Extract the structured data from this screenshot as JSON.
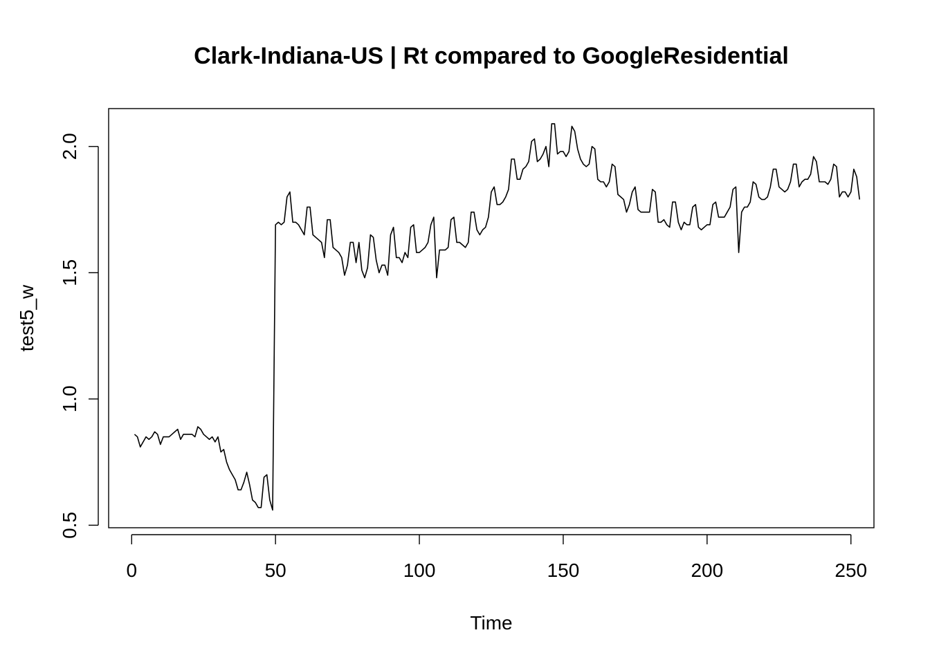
{
  "chart_data": {
    "type": "line",
    "title": "Clark-Indiana-US | Rt compared to GoogleResidential",
    "xlabel": "Time",
    "ylabel": "test5_w",
    "xlim": [
      -8,
      258
    ],
    "ylim": [
      0.49,
      2.15
    ],
    "x_ticks": [
      0,
      50,
      100,
      150,
      200,
      250
    ],
    "x_tick_labels": [
      "0",
      "50",
      "100",
      "150",
      "200",
      "250"
    ],
    "y_ticks": [
      0.5,
      1.0,
      1.5,
      2.0
    ],
    "y_tick_labels": [
      "0.5",
      "1.0",
      "1.5",
      "2.0"
    ],
    "grid": false,
    "legend": "none",
    "colors": {
      "line": "#000000",
      "background": "#ffffff"
    },
    "series": [
      {
        "x_start": 1,
        "x_step": 1,
        "values": [
          0.86,
          0.85,
          0.81,
          0.83,
          0.85,
          0.84,
          0.85,
          0.87,
          0.86,
          0.82,
          0.85,
          0.85,
          0.85,
          0.86,
          0.87,
          0.88,
          0.84,
          0.86,
          0.86,
          0.86,
          0.86,
          0.85,
          0.89,
          0.88,
          0.86,
          0.85,
          0.84,
          0.85,
          0.83,
          0.85,
          0.79,
          0.8,
          0.75,
          0.72,
          0.7,
          0.68,
          0.64,
          0.64,
          0.67,
          0.71,
          0.66,
          0.6,
          0.59,
          0.57,
          0.57,
          0.69,
          0.7,
          0.6,
          0.56,
          1.69,
          1.7,
          1.69,
          1.7,
          1.8,
          1.82,
          1.7,
          1.7,
          1.69,
          1.67,
          1.65,
          1.76,
          1.76,
          1.65,
          1.64,
          1.63,
          1.62,
          1.56,
          1.71,
          1.71,
          1.6,
          1.59,
          1.58,
          1.56,
          1.49,
          1.53,
          1.62,
          1.62,
          1.54,
          1.62,
          1.51,
          1.48,
          1.52,
          1.65,
          1.64,
          1.55,
          1.5,
          1.53,
          1.53,
          1.49,
          1.65,
          1.68,
          1.56,
          1.56,
          1.54,
          1.58,
          1.56,
          1.68,
          1.69,
          1.58,
          1.58,
          1.59,
          1.6,
          1.62,
          1.69,
          1.72,
          1.48,
          1.59,
          1.59,
          1.59,
          1.6,
          1.71,
          1.72,
          1.62,
          1.62,
          1.61,
          1.6,
          1.62,
          1.74,
          1.74,
          1.67,
          1.65,
          1.67,
          1.68,
          1.72,
          1.82,
          1.84,
          1.77,
          1.77,
          1.78,
          1.8,
          1.83,
          1.95,
          1.95,
          1.87,
          1.87,
          1.91,
          1.92,
          1.94,
          2.02,
          2.03,
          1.94,
          1.95,
          1.97,
          2.0,
          1.92,
          2.09,
          2.09,
          1.97,
          1.98,
          1.98,
          1.96,
          1.98,
          2.08,
          2.06,
          1.99,
          1.95,
          1.93,
          1.92,
          1.93,
          2.0,
          1.99,
          1.87,
          1.86,
          1.86,
          1.84,
          1.86,
          1.93,
          1.92,
          1.81,
          1.8,
          1.79,
          1.74,
          1.77,
          1.82,
          1.84,
          1.75,
          1.74,
          1.74,
          1.74,
          1.74,
          1.83,
          1.82,
          1.7,
          1.7,
          1.71,
          1.69,
          1.68,
          1.78,
          1.78,
          1.7,
          1.67,
          1.7,
          1.69,
          1.69,
          1.76,
          1.77,
          1.68,
          1.67,
          1.68,
          1.69,
          1.69,
          1.77,
          1.78,
          1.72,
          1.72,
          1.72,
          1.74,
          1.76,
          1.83,
          1.84,
          1.58,
          1.74,
          1.76,
          1.76,
          1.78,
          1.86,
          1.85,
          1.8,
          1.79,
          1.79,
          1.8,
          1.84,
          1.91,
          1.91,
          1.84,
          1.83,
          1.82,
          1.83,
          1.86,
          1.93,
          1.93,
          1.84,
          1.86,
          1.87,
          1.87,
          1.89,
          1.96,
          1.94,
          1.86,
          1.86,
          1.86,
          1.85,
          1.87,
          1.93,
          1.92,
          1.8,
          1.82,
          1.82,
          1.8,
          1.82,
          1.91,
          1.88,
          1.79
        ]
      }
    ]
  }
}
